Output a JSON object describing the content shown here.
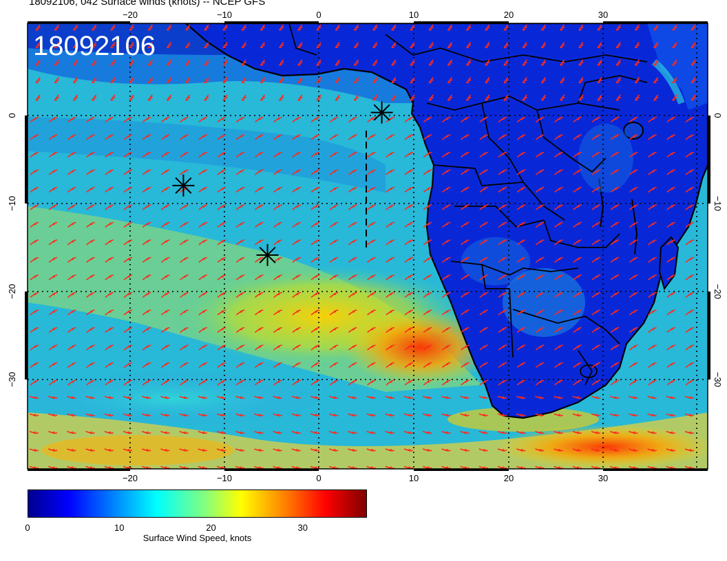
{
  "header": {
    "title": "18092106, 042 Surface winds (knots) -- NCEP GFS"
  },
  "map": {
    "stamp": "18092106",
    "lon_range": [
      -31,
      41
    ],
    "lat_range": [
      -40,
      10
    ],
    "lon_ticks": [
      -20,
      -10,
      0,
      10,
      20,
      30
    ],
    "lon_tick_labels": [
      "−20",
      "−10",
      "0",
      "10",
      "20",
      "30"
    ],
    "lat_ticks": [
      0,
      -10,
      -20,
      -30
    ],
    "lat_tick_labels": [
      "0",
      "−10",
      "−20",
      "−30"
    ],
    "barb_color": "#ff2a1a",
    "markers": [
      {
        "lon": 6.5,
        "lat": 0.0
      },
      {
        "lon": -14.5,
        "lat": -8.2
      },
      {
        "lon": -5.6,
        "lat": -16.0
      }
    ],
    "legend": {
      "title": "Surface Wind Speed, knots",
      "ticks": [
        0,
        10,
        20,
        30
      ],
      "tick_labels": [
        "0",
        "10",
        "20",
        "30"
      ],
      "range": [
        0,
        37
      ],
      "colormap": [
        "#00008f",
        "#0000ff",
        "#0080ff",
        "#00ffff",
        "#80ff80",
        "#ffff00",
        "#ff8000",
        "#ff0000",
        "#800000"
      ]
    }
  }
}
